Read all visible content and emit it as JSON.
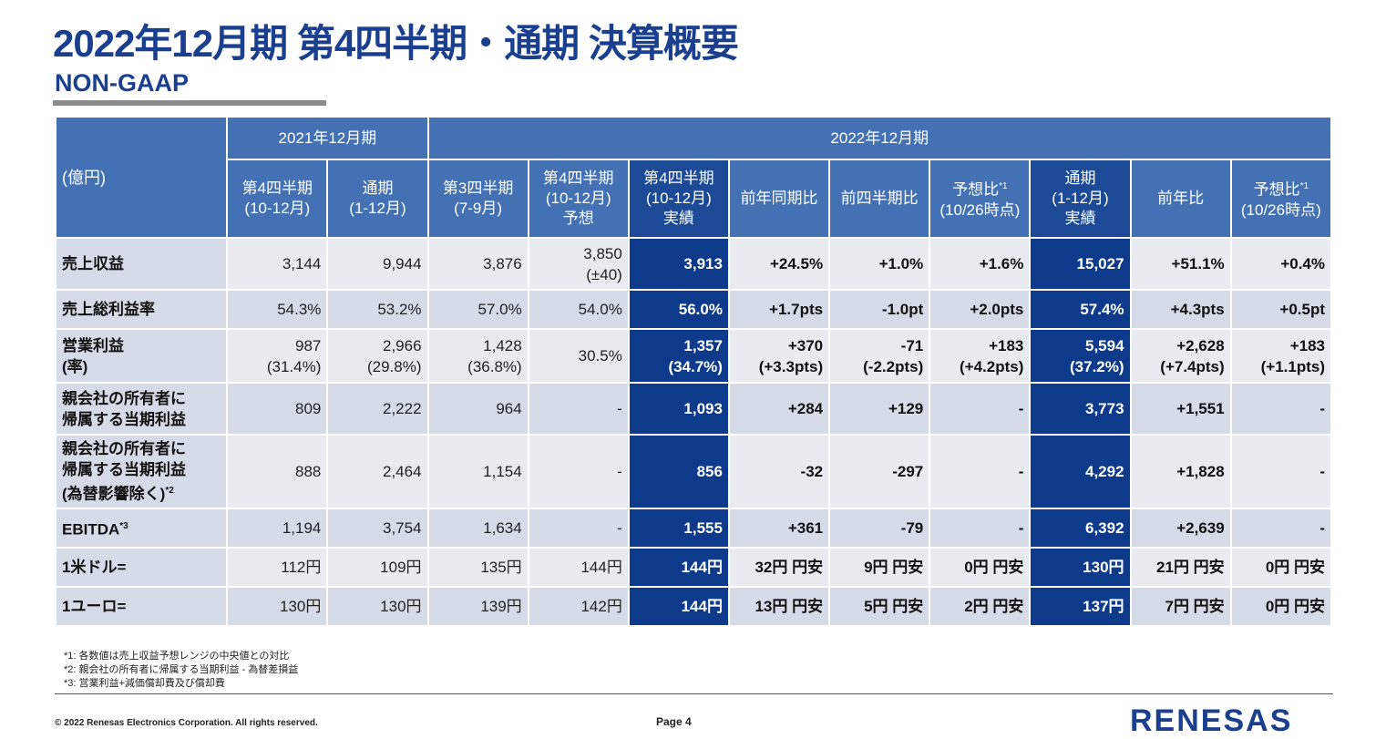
{
  "title": "2022年12月期 第4四半期・通期 決算概要",
  "subtitle": "NON-GAAP",
  "table": {
    "unit_label": "(億円)",
    "group_2021": "2021年12月期",
    "group_2022": "2022年12月期",
    "col_headers": [
      {
        "l1": "第4四半期",
        "l2": "(10-12月)",
        "l3": ""
      },
      {
        "l1": "通期",
        "l2": "(1-12月)",
        "l3": ""
      },
      {
        "l1": "第3四半期",
        "l2": "(7-9月)",
        "l3": ""
      },
      {
        "l1": "第4四半期",
        "l2": "(10-12月)",
        "l3": "予想"
      },
      {
        "l1": "第4四半期",
        "l2": "(10-12月)",
        "l3": "実績"
      },
      {
        "l1": "前年同期比",
        "l2": "",
        "l3": ""
      },
      {
        "l1": "前四半期比",
        "l2": "",
        "l3": ""
      },
      {
        "l1": "予想比",
        "sup": "*1",
        "l2": "(10/26時点)",
        "l3": ""
      },
      {
        "l1": "通期",
        "l2": "(1-12月)",
        "l3": "実績"
      },
      {
        "l1": "前年比",
        "l2": "",
        "l3": ""
      },
      {
        "l1": "予想比",
        "sup": "*1",
        "l2": "(10/26時点)",
        "l3": ""
      }
    ],
    "rows": [
      {
        "label1": "売上収益",
        "label2": "",
        "label3": "",
        "sup": "",
        "cells": [
          [
            "3,144",
            ""
          ],
          [
            "9,944",
            ""
          ],
          [
            "3,876",
            ""
          ],
          [
            "3,850",
            "(±40)"
          ],
          [
            "3,913",
            ""
          ],
          [
            "+24.5%",
            ""
          ],
          [
            "+1.0%",
            ""
          ],
          [
            "+1.6%",
            ""
          ],
          [
            "15,027",
            ""
          ],
          [
            "+51.1%",
            ""
          ],
          [
            "+0.4%",
            ""
          ]
        ]
      },
      {
        "label1": "売上総利益率",
        "label2": "",
        "label3": "",
        "sup": "",
        "cells": [
          [
            "54.3%",
            ""
          ],
          [
            "53.2%",
            ""
          ],
          [
            "57.0%",
            ""
          ],
          [
            "54.0%",
            ""
          ],
          [
            "56.0%",
            ""
          ],
          [
            "+1.7pts",
            ""
          ],
          [
            "-1.0pt",
            ""
          ],
          [
            "+2.0pts",
            ""
          ],
          [
            "57.4%",
            ""
          ],
          [
            "+4.3pts",
            ""
          ],
          [
            "+0.5pt",
            ""
          ]
        ]
      },
      {
        "label1": "営業利益",
        "label2": "(率)",
        "label3": "",
        "sup": "",
        "cells": [
          [
            "987",
            "(31.4%)"
          ],
          [
            "2,966",
            "(29.8%)"
          ],
          [
            "1,428",
            "(36.8%)"
          ],
          [
            "30.5%",
            ""
          ],
          [
            "1,357",
            "(34.7%)"
          ],
          [
            "+370",
            "(+3.3pts)"
          ],
          [
            "-71",
            "(-2.2pts)"
          ],
          [
            "+183",
            "(+4.2pts)"
          ],
          [
            "5,594",
            "(37.2%)"
          ],
          [
            "+2,628",
            "(+7.4pts)"
          ],
          [
            "+183",
            "(+1.1pts)"
          ]
        ]
      },
      {
        "label1": "親会社の所有者に",
        "label2": "帰属する当期利益",
        "label3": "",
        "sup": "",
        "cells": [
          [
            "809",
            ""
          ],
          [
            "2,222",
            ""
          ],
          [
            "964",
            ""
          ],
          [
            "-",
            ""
          ],
          [
            "1,093",
            ""
          ],
          [
            "+284",
            ""
          ],
          [
            "+129",
            ""
          ],
          [
            "-",
            ""
          ],
          [
            "3,773",
            ""
          ],
          [
            "+1,551",
            ""
          ],
          [
            "-",
            ""
          ]
        ]
      },
      {
        "label1": "親会社の所有者に",
        "label2": "帰属する当期利益",
        "label3": "(為替影響除く)",
        "sup": "*2",
        "cells": [
          [
            "888",
            ""
          ],
          [
            "2,464",
            ""
          ],
          [
            "1,154",
            ""
          ],
          [
            "-",
            ""
          ],
          [
            "856",
            ""
          ],
          [
            "-32",
            ""
          ],
          [
            "-297",
            ""
          ],
          [
            "-",
            ""
          ],
          [
            "4,292",
            ""
          ],
          [
            "+1,828",
            ""
          ],
          [
            "-",
            ""
          ]
        ]
      },
      {
        "label1": "EBITDA",
        "label2": "",
        "label3": "",
        "sup": "*3",
        "cells": [
          [
            "1,194",
            ""
          ],
          [
            "3,754",
            ""
          ],
          [
            "1,634",
            ""
          ],
          [
            "-",
            ""
          ],
          [
            "1,555",
            ""
          ],
          [
            "+361",
            ""
          ],
          [
            "-79",
            ""
          ],
          [
            "-",
            ""
          ],
          [
            "6,392",
            ""
          ],
          [
            "+2,639",
            ""
          ],
          [
            "-",
            ""
          ]
        ]
      },
      {
        "label1": "1米ドル=",
        "label2": "",
        "label3": "",
        "sup": "",
        "cells": [
          [
            "112円",
            ""
          ],
          [
            "109円",
            ""
          ],
          [
            "135円",
            ""
          ],
          [
            "144円",
            ""
          ],
          [
            "144円",
            ""
          ],
          [
            "32円 円安",
            ""
          ],
          [
            "9円 円安",
            ""
          ],
          [
            "0円 円安",
            ""
          ],
          [
            "130円",
            ""
          ],
          [
            "21円 円安",
            ""
          ],
          [
            "0円 円安",
            ""
          ]
        ]
      },
      {
        "label1": "1ユーロ=",
        "label2": "",
        "label3": "",
        "sup": "",
        "cells": [
          [
            "130円",
            ""
          ],
          [
            "130円",
            ""
          ],
          [
            "139円",
            ""
          ],
          [
            "142円",
            ""
          ],
          [
            "144円",
            ""
          ],
          [
            "13円 円安",
            ""
          ],
          [
            "5円 円安",
            ""
          ],
          [
            "2円 円安",
            ""
          ],
          [
            "137円",
            ""
          ],
          [
            "7円 円安",
            ""
          ],
          [
            "0円 円安",
            ""
          ]
        ]
      }
    ]
  },
  "footnotes": [
    "*1: 各数値は売上収益予想レンジの中央値との対比",
    "*2: 親会社の所有者に帰属する当期利益 - 為替差損益",
    "*3: 営業利益+減価償却費及び償却費"
  ],
  "copyright": "© 2022 Renesas Electronics Corporation. All rights reserved.",
  "page_label": "Page 4",
  "logo_text": "RENESAS",
  "colors": {
    "brand": "#1b3f8f",
    "header": "#4471b4",
    "highlight": "#0e3a8c"
  }
}
